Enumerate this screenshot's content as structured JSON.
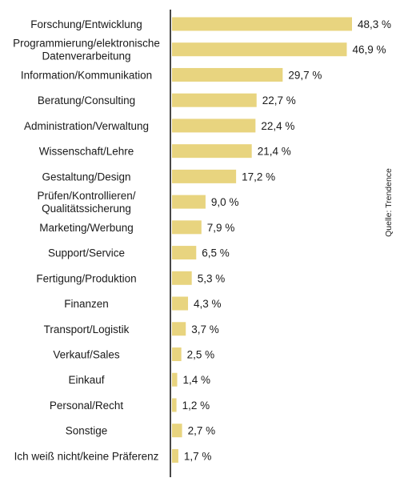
{
  "chart_data": {
    "type": "bar",
    "orientation": "horizontal",
    "categories": [
      [
        "Forschung/Entwicklung"
      ],
      [
        "Programmierung/elektronische",
        "Datenverarbeitung"
      ],
      [
        "Information/Kommunikation"
      ],
      [
        "Beratung/Consulting"
      ],
      [
        "Administration/Verwaltung"
      ],
      [
        "Wissenschaft/Lehre"
      ],
      [
        "Gestaltung/Design"
      ],
      [
        "Prüfen/Kontrollieren/",
        "Qualitätssicherung"
      ],
      [
        "Marketing/Werbung"
      ],
      [
        "Support/Service"
      ],
      [
        "Fertigung/Produktion"
      ],
      [
        "Finanzen"
      ],
      [
        "Transport/Logistik"
      ],
      [
        "Verkauf/Sales"
      ],
      [
        "Einkauf"
      ],
      [
        "Personal/Recht"
      ],
      [
        "Sonstige"
      ],
      [
        "Ich weiß nicht/keine Präferenz"
      ]
    ],
    "values": [
      48.3,
      46.9,
      29.7,
      22.7,
      22.4,
      21.4,
      17.2,
      9.0,
      7.9,
      6.5,
      5.3,
      4.3,
      3.7,
      2.5,
      1.4,
      1.2,
      2.7,
      1.7
    ],
    "value_labels": [
      "48,3 %",
      "46,9 %",
      "29,7 %",
      "22,7 %",
      "22,4 %",
      "21,4 %",
      "17,2 %",
      "9,0 %",
      "7,9 %",
      "6,5 %",
      "5,3 %",
      "4,3 %",
      "3,7 %",
      "2,5 %",
      "1,4 %",
      "1,2 %",
      "2,7 %",
      "1,7 %"
    ],
    "xlim": [
      0,
      48.3
    ],
    "grid": false,
    "legend": null,
    "source": "Quelle: Trendence",
    "colors": {
      "bar": "#e8d47f",
      "axis": "#1a1a1a",
      "text": "#1a1a1a"
    }
  }
}
